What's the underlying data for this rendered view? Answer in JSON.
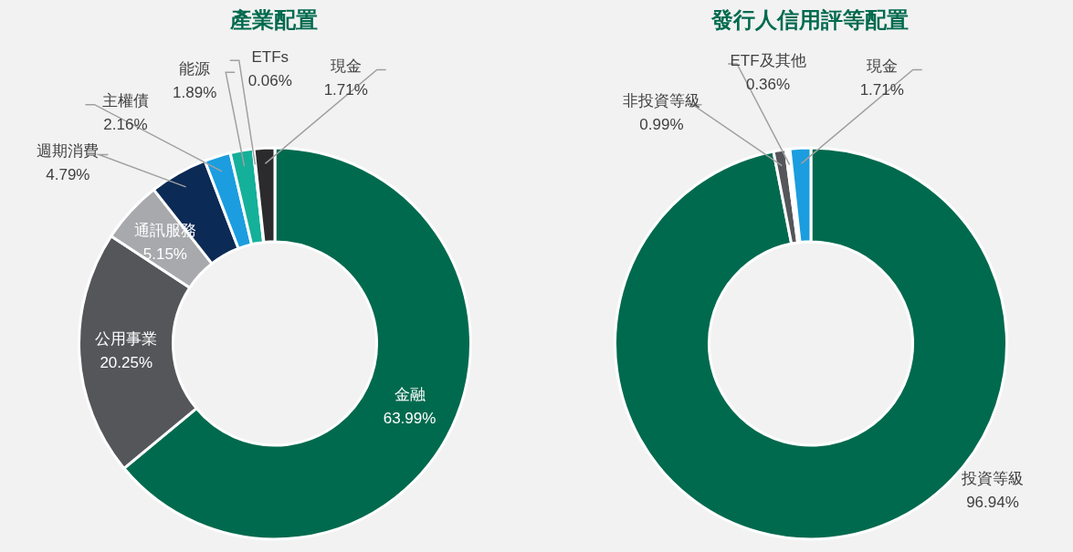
{
  "chart_data": [
    {
      "type": "donut",
      "title": "產業配置",
      "categories": [
        "金融",
        "公用事業",
        "通訊服務",
        "週期消費",
        "主權債",
        "能源",
        "ETFs",
        "現金"
      ],
      "values": [
        63.99,
        20.25,
        5.15,
        4.79,
        2.16,
        1.89,
        0.06,
        1.71
      ],
      "colors": [
        "#006a4e",
        "#55565a",
        "#a7a9ac",
        "#0b2a55",
        "#1b9ddf",
        "#14b09a",
        "#e0e0e0",
        "#2b2b2d"
      ],
      "value_labels": [
        "63.99%",
        "20.25%",
        "5.15%",
        "4.79%",
        "2.16%",
        "1.89%",
        "0.06%",
        "1.71%"
      ]
    },
    {
      "type": "donut",
      "title": "發行人信用評等配置",
      "categories": [
        "投資等級",
        "非投資等級",
        "ETF及其他",
        "現金"
      ],
      "values": [
        96.94,
        0.99,
        0.36,
        1.71
      ],
      "colors": [
        "#006a4e",
        "#55565a",
        "#ffffff",
        "#1b9ddf"
      ],
      "value_labels": [
        "96.94%",
        "0.99%",
        "0.36%",
        "1.71%"
      ]
    }
  ]
}
